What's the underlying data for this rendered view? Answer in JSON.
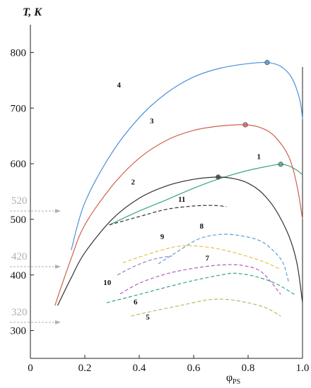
{
  "chart_data": {
    "type": "line",
    "title": "",
    "ylabel": "T, K",
    "xlabel": "φPS",
    "xlim": [
      0,
      1.0
    ],
    "ylim": [
      250,
      850
    ],
    "x_ticks": [
      0,
      0.2,
      0.4,
      0.6,
      0.8,
      1.0
    ],
    "x_tick_labels": [
      "0",
      "0.2",
      "0.4",
      "0.6",
      "0.8",
      "1.0"
    ],
    "y_ticks": [
      300,
      400,
      500,
      600,
      700,
      800
    ],
    "y_tick_labels": [
      "300",
      "400",
      "500",
      "600",
      "700",
      "800"
    ],
    "grid": false,
    "legend": "none",
    "annotations": [
      {
        "text": "520",
        "y": 520,
        "color": "#b0b0b0"
      },
      {
        "text": "420",
        "y": 420,
        "color": "#b0b0b0"
      },
      {
        "text": "320",
        "y": 320,
        "color": "#b0b0b0"
      }
    ],
    "series": [
      {
        "label": "1",
        "color": "#3aa57a",
        "style": "solid",
        "x": [
          0.29,
          0.4,
          0.5,
          0.6,
          0.7,
          0.8,
          0.9,
          0.92,
          0.95,
          0.98,
          1.0
        ],
        "y": [
          490,
          515,
          535,
          556,
          574,
          588,
          598,
          599,
          596,
          588,
          580
        ],
        "marker": {
          "x": 0.92,
          "y": 599
        }
      },
      {
        "label": "2",
        "color": "#333333",
        "style": "solid",
        "x": [
          0.1,
          0.15,
          0.2,
          0.3,
          0.4,
          0.5,
          0.6,
          0.69,
          0.75,
          0.8,
          0.85,
          0.9,
          0.95,
          0.98,
          1.0
        ],
        "y": [
          345,
          395,
          440,
          500,
          538,
          560,
          572,
          576,
          573,
          565,
          548,
          518,
          470,
          420,
          350
        ],
        "marker": {
          "x": 0.69,
          "y": 576
        }
      },
      {
        "label": "3",
        "color": "#d0604c",
        "style": "solid",
        "x": [
          0.09,
          0.15,
          0.2,
          0.3,
          0.4,
          0.5,
          0.6,
          0.7,
          0.79,
          0.85,
          0.9,
          0.95,
          0.98,
          1.0
        ],
        "y": [
          345,
          430,
          490,
          560,
          610,
          642,
          660,
          668,
          670,
          664,
          648,
          612,
          560,
          500
        ],
        "marker": {
          "x": 0.79,
          "y": 670
        }
      },
      {
        "label": "4",
        "color": "#4a90d9",
        "style": "solid",
        "x": [
          0.15,
          0.2,
          0.3,
          0.4,
          0.5,
          0.6,
          0.7,
          0.8,
          0.87,
          0.92,
          0.96,
          0.99,
          1.0
        ],
        "y": [
          445,
          530,
          620,
          683,
          727,
          756,
          772,
          780,
          782,
          775,
          755,
          715,
          680
        ],
        "marker": {
          "x": 0.87,
          "y": 782
        }
      },
      {
        "label": "5",
        "color": "#a2c760",
        "style": "dashed",
        "x": [
          0.37,
          0.45,
          0.55,
          0.65,
          0.72,
          0.8,
          0.87,
          0.92
        ],
        "y": [
          326,
          335,
          345,
          355,
          356,
          350,
          340,
          326
        ]
      },
      {
        "label": "6",
        "color": "#3aa57a",
        "style": "dashed",
        "x": [
          0.28,
          0.4,
          0.5,
          0.6,
          0.7,
          0.75,
          0.82,
          0.9,
          0.97
        ],
        "y": [
          350,
          365,
          378,
          390,
          400,
          403,
          398,
          385,
          365
        ]
      },
      {
        "label": "7",
        "color": "#b060c0",
        "style": "dashed",
        "x": [
          0.33,
          0.4,
          0.5,
          0.6,
          0.7,
          0.78,
          0.85,
          0.92
        ],
        "y": [
          366,
          385,
          402,
          412,
          418,
          417,
          405,
          365
        ]
      },
      {
        "label": "8",
        "color": "#5aa0d8",
        "style": "dashed",
        "x": [
          0.47,
          0.55,
          0.62,
          0.7,
          0.78,
          0.85,
          0.9,
          0.93,
          0.95
        ],
        "y": [
          420,
          445,
          465,
          473,
          470,
          460,
          440,
          420,
          385
        ]
      },
      {
        "label": "9",
        "color": "#e8c040",
        "style": "dashed",
        "x": [
          0.34,
          0.45,
          0.55,
          0.65,
          0.75,
          0.85,
          0.92
        ],
        "y": [
          422,
          440,
          452,
          450,
          440,
          425,
          410
        ]
      },
      {
        "label": "10",
        "color": "#9a80c0",
        "style": "dashed",
        "x": [
          0.32,
          0.38,
          0.45,
          0.52
        ],
        "y": [
          400,
          415,
          428,
          434
        ]
      },
      {
        "label": "11",
        "color": "#333333",
        "style": "dashed",
        "x": [
          0.29,
          0.4,
          0.5,
          0.6,
          0.67,
          0.72
        ],
        "y": [
          490,
          505,
          518,
          524,
          525,
          523
        ]
      }
    ]
  }
}
